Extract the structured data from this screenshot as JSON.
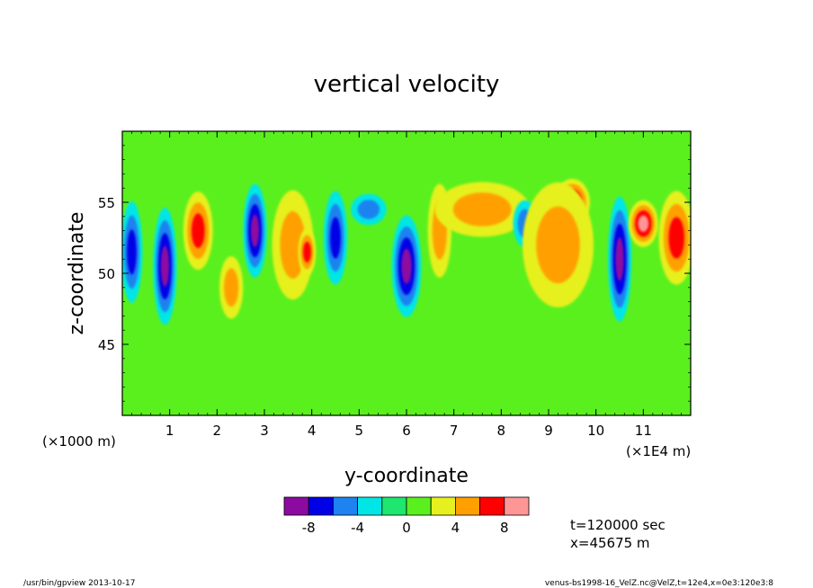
{
  "chart_data": {
    "type": "heatmap",
    "title": "vertical velocity",
    "xlabel": "y-coordinate",
    "ylabel": "z-coordinate",
    "x_unit_left": "(×1000 m)",
    "x_unit_right": "(×1E4 m)",
    "x_ticks": [
      "1",
      "2",
      "3",
      "4",
      "5",
      "6",
      "7",
      "8",
      "9",
      "10",
      "11"
    ],
    "x_tick_values": [
      1,
      2,
      3,
      4,
      5,
      6,
      7,
      8,
      9,
      10,
      11
    ],
    "y_ticks": [
      "45",
      "50",
      "55"
    ],
    "y_tick_values": [
      45,
      50,
      55
    ],
    "xlim": [
      0,
      12
    ],
    "ylim": [
      40,
      60
    ],
    "colorbar": {
      "colors": [
        "#8c0aa0",
        "#0000e6",
        "#1e82f0",
        "#00e6e6",
        "#1ee66e",
        "#5af01e",
        "#e6f01e",
        "#ffa000",
        "#ff0000",
        "#ff9696"
      ],
      "tick_labels": [
        "-8",
        "-4",
        "0",
        "4",
        "8"
      ],
      "tick_values": [
        -8,
        -4,
        0,
        4,
        8
      ],
      "bounds": [
        -10,
        -8,
        -6,
        -4,
        -2,
        0,
        2,
        4,
        6,
        8,
        10
      ]
    },
    "features": [
      {
        "y": 0.2,
        "z": 51.5,
        "w": 0.18,
        "h": 6.5,
        "level": -5
      },
      {
        "y": 0.9,
        "z": 50.5,
        "w": 0.2,
        "h": 7.5,
        "level": -7
      },
      {
        "y": 1.6,
        "z": 53.0,
        "w": 0.25,
        "h": 5.0,
        "level": 5
      },
      {
        "y": 2.3,
        "z": 49.0,
        "w": 0.2,
        "h": 4.0,
        "level": 3
      },
      {
        "y": 2.8,
        "z": 53.0,
        "w": 0.2,
        "h": 6.0,
        "level": -7
      },
      {
        "y": 3.6,
        "z": 52.0,
        "w": 0.35,
        "h": 7.0,
        "level": 3
      },
      {
        "y": 3.9,
        "z": 51.5,
        "w": 0.15,
        "h": 3.0,
        "level": 5
      },
      {
        "y": 4.5,
        "z": 52.5,
        "w": 0.2,
        "h": 6.0,
        "level": -5
      },
      {
        "y": 5.2,
        "z": 54.5,
        "w": 0.3,
        "h": 2.0,
        "level": -3
      },
      {
        "y": 6.0,
        "z": 50.5,
        "w": 0.25,
        "h": 6.5,
        "level": -7
      },
      {
        "y": 6.7,
        "z": 53.0,
        "w": 0.2,
        "h": 6.0,
        "level": 3
      },
      {
        "y": 7.6,
        "z": 54.5,
        "w": 0.8,
        "h": 3.5,
        "level": 3
      },
      {
        "y": 8.5,
        "z": 53.5,
        "w": 0.2,
        "h": 3.0,
        "level": -3
      },
      {
        "y": 9.5,
        "z": 55.0,
        "w": 0.3,
        "h": 3.0,
        "level": 7
      },
      {
        "y": 9.2,
        "z": 52.0,
        "w": 0.6,
        "h": 8.0,
        "level": 3
      },
      {
        "y": 10.5,
        "z": 51.0,
        "w": 0.2,
        "h": 8.0,
        "level": -7
      },
      {
        "y": 11.0,
        "z": 53.5,
        "w": 0.25,
        "h": 3.0,
        "level": 7
      },
      {
        "y": 11.7,
        "z": 52.5,
        "w": 0.3,
        "h": 6.0,
        "level": 5
      }
    ]
  },
  "annotations": {
    "time": "t=120000 sec",
    "position": "x=45675 m"
  },
  "footer": {
    "left": "/usr/bin/gpview  2013-10-17",
    "right": "venus-bs1998-16_VelZ.nc@VelZ,t=12e4,x=0e3:120e3:8"
  }
}
